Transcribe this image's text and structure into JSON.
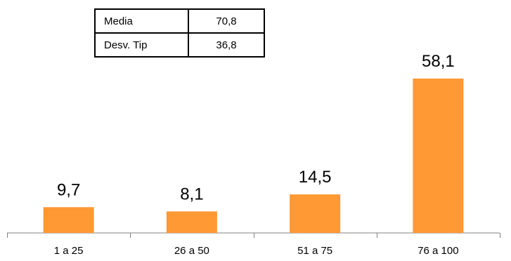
{
  "stats_table": {
    "rows": [
      {
        "label": "Media",
        "value": "70,8"
      },
      {
        "label": "Desv. Tip",
        "value": "36,8"
      }
    ]
  },
  "chart_data": {
    "type": "bar",
    "categories": [
      "1 a 25",
      "26 a 50",
      "51 a 75",
      "76 a 100"
    ],
    "values": [
      9.7,
      8.1,
      14.5,
      58.1
    ],
    "value_labels": [
      "9,7",
      "8,1",
      "14,5",
      "58,1"
    ],
    "title": "",
    "xlabel": "",
    "ylabel": "",
    "ylim": [
      0,
      70
    ],
    "grid": false,
    "legend": "none",
    "bar_color": "#FF9933",
    "axis_color": "#808080"
  }
}
